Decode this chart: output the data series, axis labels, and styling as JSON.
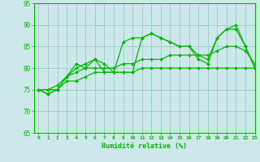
{
  "title": "",
  "xlabel": "Humidité relative (%)",
  "ylabel": "",
  "xlim": [
    -0.5,
    23
  ],
  "ylim": [
    65,
    95
  ],
  "yticks": [
    65,
    70,
    75,
    80,
    85,
    90,
    95
  ],
  "xticks": [
    0,
    1,
    2,
    3,
    4,
    5,
    6,
    7,
    8,
    9,
    10,
    11,
    12,
    13,
    14,
    15,
    16,
    17,
    18,
    19,
    20,
    21,
    22,
    23
  ],
  "background_color": "#cce8e8",
  "grid_color": "#99cccc",
  "line_color": "#00bb00",
  "lines": [
    [
      75,
      74,
      75,
      78,
      81,
      80,
      82,
      81,
      79,
      86,
      87,
      87,
      88,
      87,
      86,
      85,
      85,
      83,
      82,
      87,
      89,
      90,
      85,
      80
    ],
    [
      75,
      74,
      75,
      78,
      80,
      81,
      82,
      79,
      79,
      79,
      79,
      87,
      88,
      87,
      86,
      85,
      85,
      82,
      81,
      87,
      89,
      89,
      85,
      80
    ],
    [
      75,
      75,
      75,
      77,
      77,
      78,
      79,
      79,
      79,
      79,
      79,
      80,
      80,
      80,
      80,
      80,
      80,
      80,
      80,
      80,
      80,
      80,
      80,
      80
    ],
    [
      75,
      75,
      76,
      78,
      79,
      80,
      80,
      80,
      80,
      81,
      81,
      82,
      82,
      82,
      83,
      83,
      83,
      83,
      83,
      84,
      85,
      85,
      84,
      81
    ]
  ]
}
